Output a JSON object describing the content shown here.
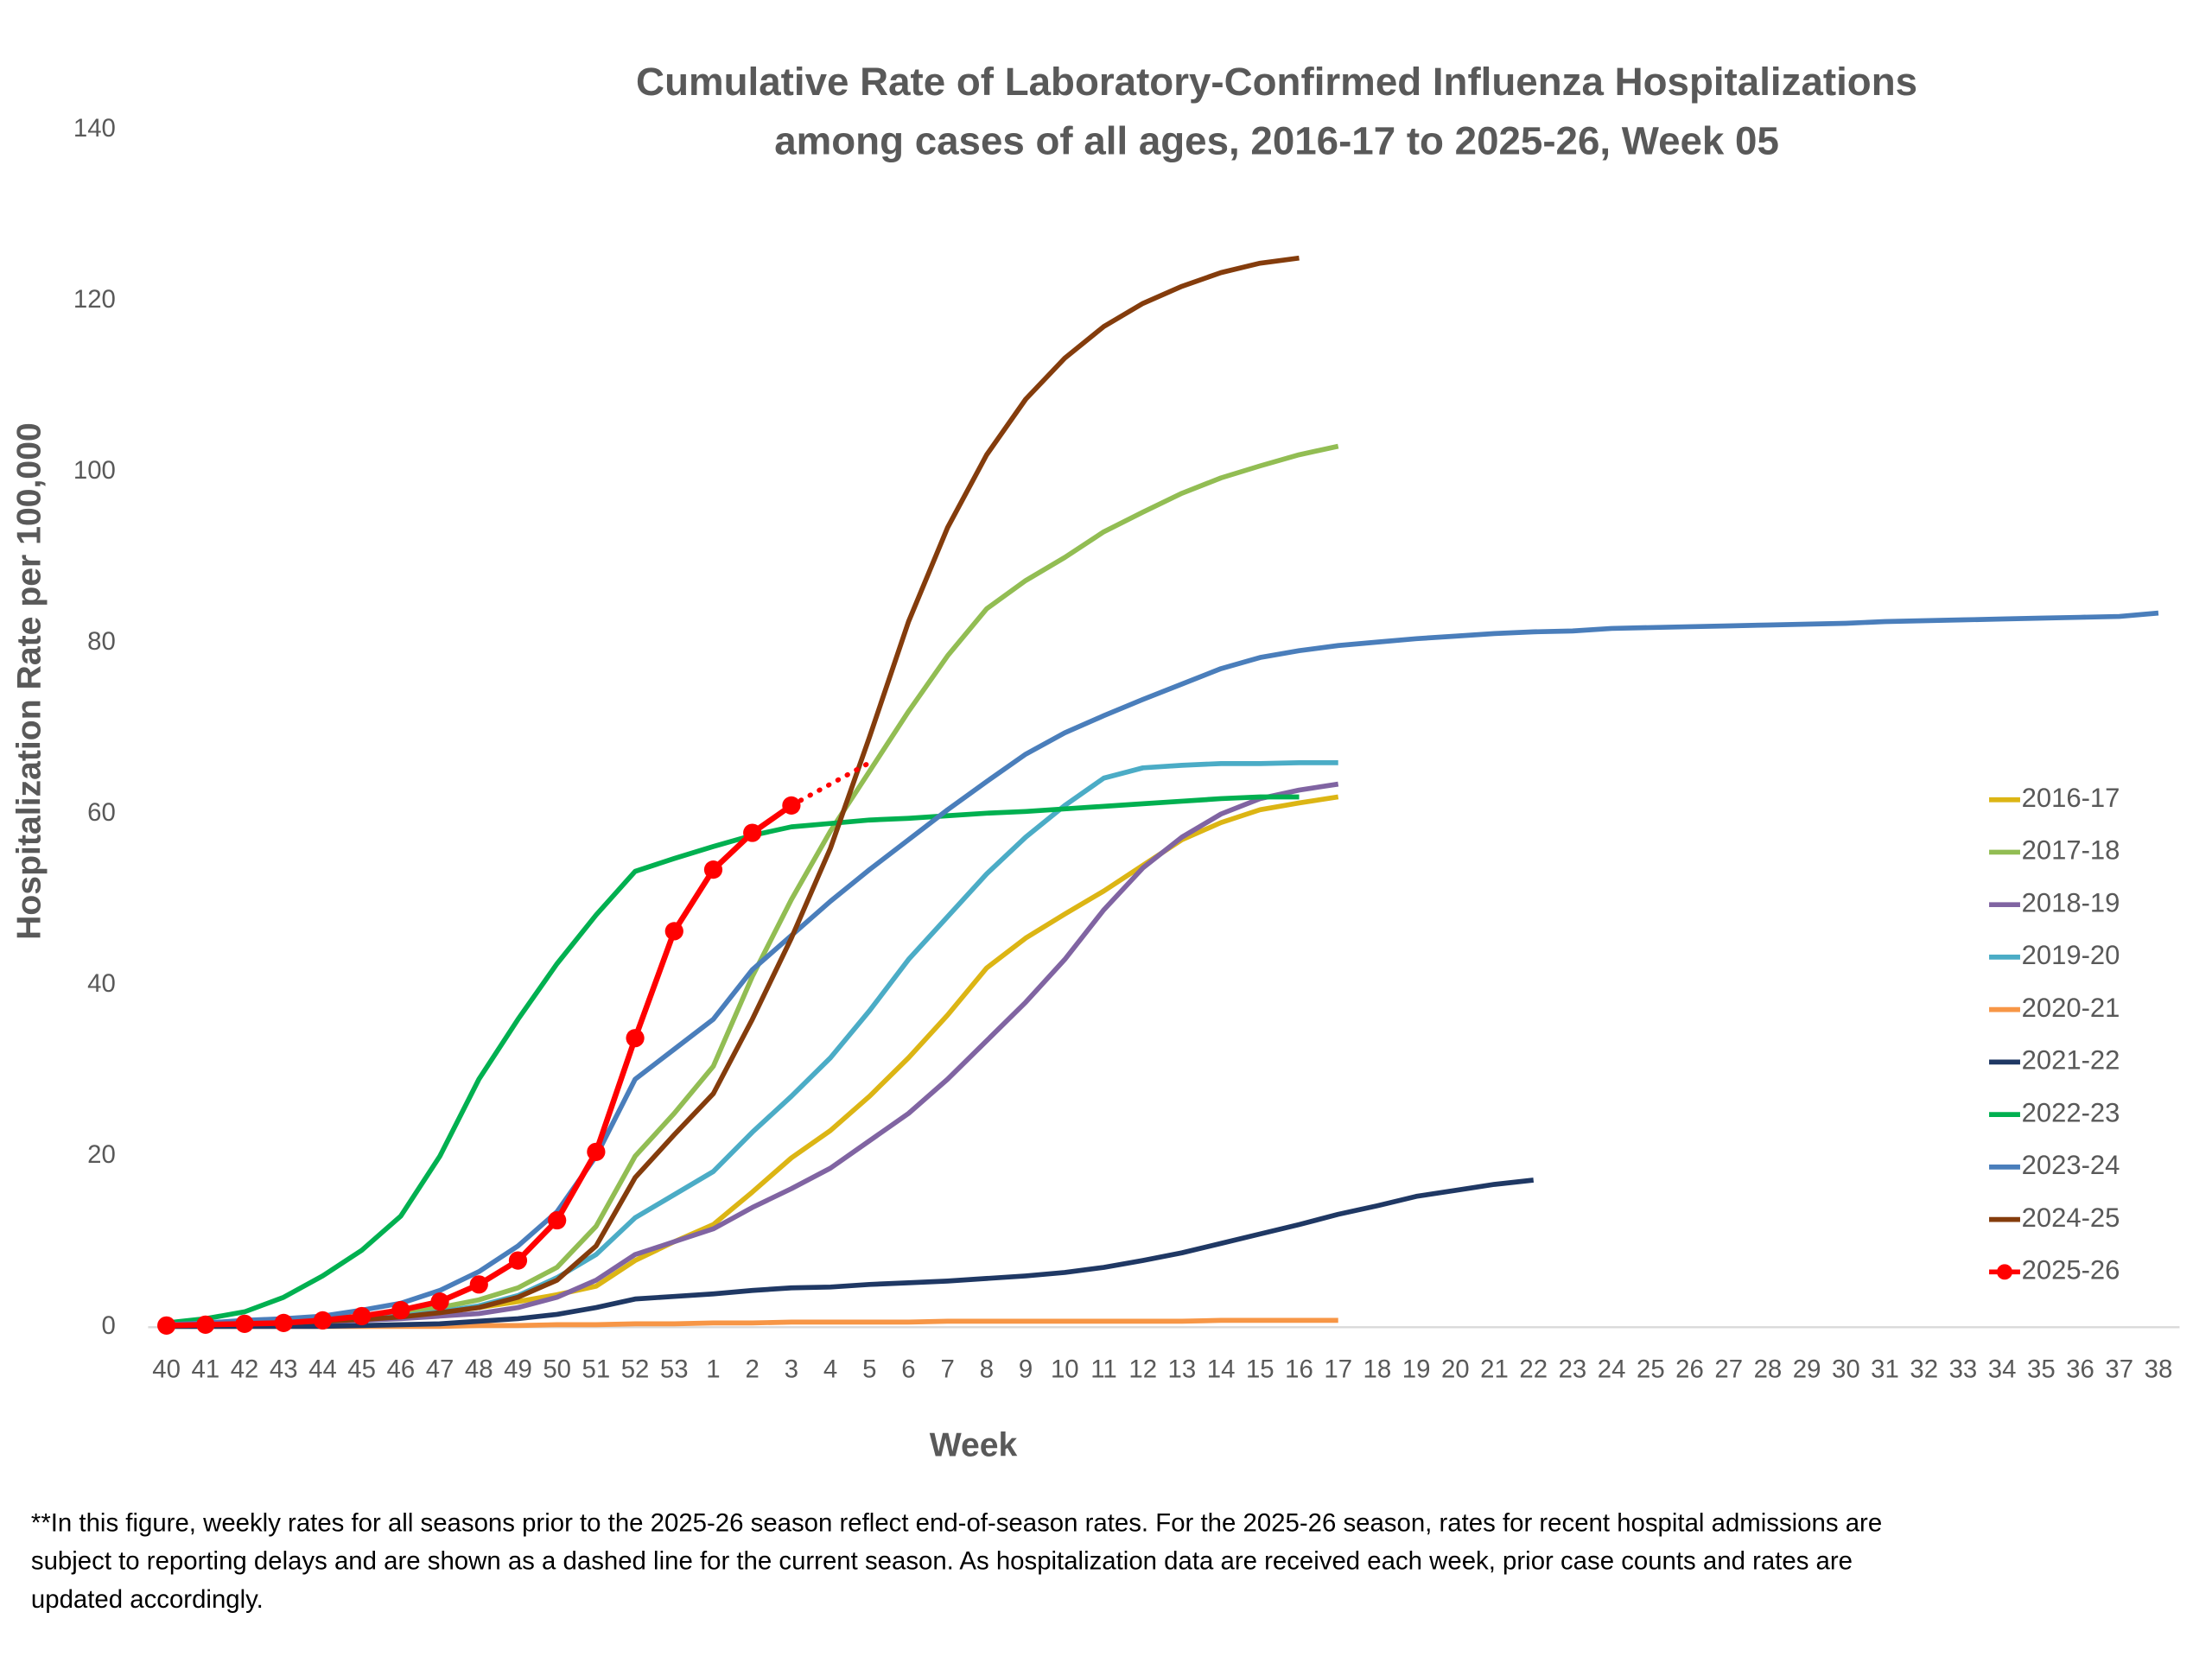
{
  "chart_data": {
    "type": "line",
    "title": [
      "Cumulative Rate of Laboratory-Confirmed Influenza Hospitalizations",
      "among cases of all ages, 2016-17 to 2025-26, Week 05"
    ],
    "x_label": "Week",
    "y_label": "Hospitalization Rate per 100,000",
    "categories": [
      40,
      41,
      42,
      43,
      44,
      45,
      46,
      47,
      48,
      49,
      50,
      51,
      52,
      53,
      1,
      2,
      3,
      4,
      5,
      6,
      7,
      8,
      9,
      10,
      11,
      12,
      13,
      14,
      15,
      16,
      17,
      18,
      19,
      20,
      21,
      22,
      23,
      24,
      25,
      26,
      27,
      28,
      29,
      30,
      31,
      32,
      33,
      34,
      35,
      36,
      37,
      38
    ],
    "ylim": [
      0,
      140
    ],
    "yticks": [
      0,
      20,
      40,
      60,
      80,
      100,
      120,
      140
    ],
    "grid": false,
    "legend": "right",
    "series": [
      {
        "name": "2016-17",
        "color": "#dcb514",
        "values": [
          0.2,
          0.3,
          0.4,
          0.5,
          0.7,
          1,
          1.3,
          1.8,
          2.3,
          3,
          3.8,
          4.8,
          7.8,
          10,
          12,
          15.8,
          19.8,
          23,
          27,
          31.5,
          36.5,
          42,
          45.5,
          48.3,
          51,
          54,
          57,
          59,
          60.5,
          61.3,
          62,
          null,
          null,
          null,
          null,
          null,
          null,
          null,
          null,
          null,
          null,
          null,
          null,
          null,
          null,
          null,
          null,
          null,
          null,
          null,
          null,
          null
        ]
      },
      {
        "name": "2017-18",
        "color": "#92bd53",
        "values": [
          0.3,
          0.4,
          0.6,
          0.8,
          1,
          1.3,
          1.7,
          2.3,
          3.2,
          4.6,
          7,
          11.8,
          20,
          25,
          30.5,
          41,
          50,
          58,
          65,
          72,
          78.5,
          84,
          87.3,
          90,
          93,
          95.3,
          97.5,
          99.3,
          100.7,
          102,
          103,
          null,
          null,
          null,
          null,
          null,
          null,
          null,
          null,
          null,
          null,
          null,
          null,
          null,
          null,
          null,
          null,
          null,
          null,
          null,
          null,
          null
        ]
      },
      {
        "name": "2018-19",
        "color": "#8064a2",
        "values": [
          0.2,
          0.3,
          0.4,
          0.5,
          0.6,
          0.8,
          1,
          1.3,
          1.6,
          2.3,
          3.5,
          5.5,
          8.5,
          10,
          11.5,
          14,
          16.2,
          18.6,
          21.8,
          25,
          29,
          33.5,
          38,
          43,
          48.8,
          53.7,
          57.3,
          60,
          61.8,
          62.8,
          63.5,
          null,
          null,
          null,
          null,
          null,
          null,
          null,
          null,
          null,
          null,
          null,
          null,
          null,
          null,
          null,
          null,
          null,
          null,
          null,
          null,
          null
        ]
      },
      {
        "name": "2019-20",
        "color": "#4bacc6",
        "values": [
          0.2,
          0.3,
          0.4,
          0.5,
          0.7,
          1,
          1.3,
          1.8,
          2.5,
          3.7,
          5.8,
          8.5,
          12.8,
          15.5,
          18.2,
          22.8,
          27,
          31.5,
          37,
          43,
          48,
          53,
          57.3,
          61,
          64.2,
          65.4,
          65.7,
          65.9,
          65.9,
          66,
          66,
          null,
          null,
          null,
          null,
          null,
          null,
          null,
          null,
          null,
          null,
          null,
          null,
          null,
          null,
          null,
          null,
          null,
          null,
          null,
          null,
          null
        ]
      },
      {
        "name": "2020-21",
        "color": "#f79646",
        "values": [
          0.1,
          0.1,
          0.1,
          0.1,
          0.1,
          0.1,
          0.1,
          0.1,
          0.2,
          0.2,
          0.3,
          0.3,
          0.4,
          0.4,
          0.5,
          0.5,
          0.6,
          0.6,
          0.6,
          0.6,
          0.7,
          0.7,
          0.7,
          0.7,
          0.7,
          0.7,
          0.7,
          0.8,
          0.8,
          0.8,
          0.8,
          null,
          null,
          null,
          null,
          null,
          null,
          null,
          null,
          null,
          null,
          null,
          null,
          null,
          null,
          null,
          null,
          null,
          null,
          null,
          null,
          null
        ]
      },
      {
        "name": "2021-22",
        "color": "#1f3864",
        "values": [
          0.1,
          0.1,
          0.1,
          0.1,
          0.1,
          0.2,
          0.3,
          0.4,
          0.7,
          1,
          1.5,
          2.3,
          3.3,
          3.6,
          3.9,
          4.3,
          4.6,
          4.7,
          5,
          5.2,
          5.4,
          5.7,
          6,
          6.4,
          7,
          7.8,
          8.7,
          9.8,
          10.9,
          12,
          13.2,
          14.2,
          15.3,
          16,
          16.7,
          17.2,
          null,
          null,
          null,
          null,
          null,
          null,
          null,
          null,
          null,
          null,
          null,
          null,
          null,
          null,
          null,
          null
        ]
      },
      {
        "name": "2022-23",
        "color": "#00b050",
        "values": [
          0.5,
          1,
          1.8,
          3.5,
          6,
          9,
          13,
          20,
          29,
          36,
          42.5,
          48.2,
          53.3,
          54.8,
          56.2,
          57.5,
          58.5,
          58.9,
          59.3,
          59.5,
          59.8,
          60.1,
          60.3,
          60.6,
          60.9,
          61.2,
          61.5,
          61.8,
          62,
          62,
          null,
          null,
          null,
          null,
          null,
          null,
          null,
          null,
          null,
          null,
          null,
          null,
          null,
          null,
          null,
          null,
          null,
          null,
          null,
          null,
          null,
          null
        ]
      },
      {
        "name": "2023-24",
        "color": "#4a7ebb",
        "values": [
          0.3,
          0.5,
          0.8,
          1,
          1.3,
          2,
          2.8,
          4.3,
          6.5,
          9.5,
          13.5,
          20,
          29,
          32.5,
          36,
          41.8,
          45.8,
          49.8,
          53.5,
          57,
          60.5,
          63.8,
          67,
          69.5,
          71.5,
          73.4,
          75.2,
          77,
          78.3,
          79.1,
          79.7,
          80.1,
          80.5,
          80.8,
          81.1,
          81.3,
          81.4,
          81.7,
          81.8,
          81.9,
          82,
          82.1,
          82.2,
          82.3,
          82.5,
          82.6,
          82.7,
          82.8,
          82.9,
          83,
          83.1,
          83.5
        ]
      },
      {
        "name": "2024-25",
        "color": "#843c0c",
        "values": [
          0.2,
          0.3,
          0.4,
          0.5,
          0.7,
          0.9,
          1.2,
          1.7,
          2.3,
          3.5,
          5.5,
          9.5,
          17.5,
          22.5,
          27.3,
          36,
          45.5,
          56,
          69,
          82.5,
          93.5,
          102,
          108.5,
          113.3,
          117,
          119.7,
          121.7,
          123.3,
          124.4,
          125,
          null,
          null,
          null,
          null,
          null,
          null,
          null,
          null,
          null,
          null,
          null,
          null,
          null,
          null,
          null,
          null,
          null,
          null,
          null,
          null,
          null,
          null
        ]
      },
      {
        "name": "2025-26",
        "color": "#ff0000",
        "markers": true,
        "values": [
          0.2,
          0.3,
          0.4,
          0.5,
          0.8,
          1.3,
          2,
          3,
          5,
          7.8,
          12.5,
          20.5,
          33.8,
          46.3,
          53.5,
          57.8,
          61,
          null,
          null,
          null,
          null,
          null,
          null,
          null,
          null,
          null,
          null,
          null,
          null,
          null,
          null,
          null,
          null,
          null,
          null,
          null,
          null,
          null,
          null,
          null,
          null,
          null,
          null,
          null,
          null,
          null,
          null,
          null,
          null,
          null,
          null,
          null
        ],
        "provisional_values": [
          null,
          null,
          null,
          null,
          null,
          null,
          null,
          null,
          null,
          null,
          null,
          null,
          null,
          null,
          null,
          null,
          null,
          63.5,
          66,
          null,
          null,
          null,
          null,
          null,
          null,
          null,
          null,
          null,
          null,
          null,
          null,
          null,
          null,
          null,
          null,
          null,
          null,
          null,
          null,
          null,
          null,
          null,
          null,
          null,
          null,
          null,
          null,
          null,
          null,
          null,
          null,
          null
        ]
      }
    ],
    "footnote": [
      "**In this figure, weekly rates for all seasons prior to the 2025-26 season reflect end-of-season rates. For the 2025-26 season, rates for recent hospital admissions are",
      "subject to reporting delays and are shown as a dashed line for the current season. As hospitalization data are received each week, prior case counts and rates are",
      "updated accordingly."
    ]
  }
}
